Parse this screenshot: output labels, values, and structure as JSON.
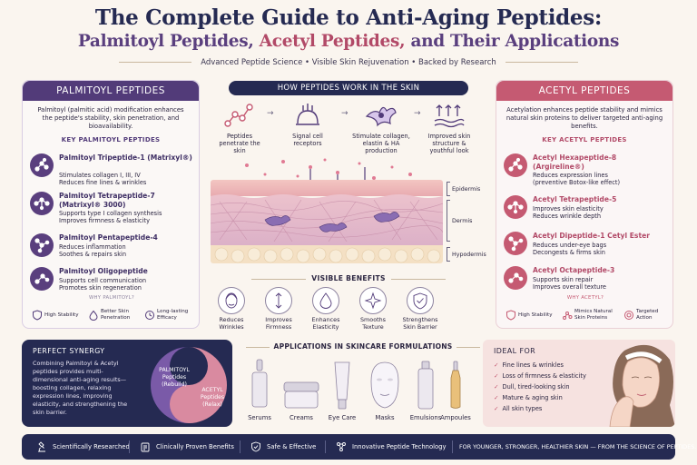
{
  "header": {
    "title": "The Complete Guide to Anti-Aging Peptides:",
    "subtitle_part1": "Palmitoyl Peptides,",
    "subtitle_part2": "Acetyl Peptides,",
    "subtitle_part3": "and Their Applications",
    "tagline": "Advanced Peptide Science • Visible Skin Rejuvenation • Backed by Research"
  },
  "palmitoyl": {
    "heading": "PALMITOYL PEPTIDES",
    "intro": "Palmitoyl (palmitic acid) modification enhances the peptide's stability, skin penetration, and bioavailability.",
    "key_title": "KEY PALMITOYL PEPTIDES",
    "items": [
      {
        "name": "Palmitoyl Tripeptide-1 (Matrixyl®)",
        "line1": "Stimulates collagen I, III, IV",
        "line2": "Reduces fine lines & wrinkles"
      },
      {
        "name": "Palmitoyl Tetrapeptide-7 (Matrixyl® 3000)",
        "line1": "Supports type I collagen synthesis",
        "line2": "Improves firmness & elasticity"
      },
      {
        "name": "Palmitoyl Pentapeptide-4",
        "line1": "Reduces inflammation",
        "line2": "Soothes & repairs skin"
      },
      {
        "name": "Palmitoyl Oligopeptide",
        "line1": "Supports cell communication",
        "line2": "Promotes skin regeneration"
      }
    ],
    "why_title": "WHY PALMITOYL?",
    "why": [
      "High Stability",
      "Better Skin Penetration",
      "Long-lasting Efficacy"
    ]
  },
  "acetyl": {
    "heading": "ACETYL PEPTIDES",
    "intro": "Acetylation enhances peptide stability and mimics natural skin proteins to deliver targeted anti-aging benefits.",
    "key_title": "KEY ACETYL PEPTIDES",
    "items": [
      {
        "name": "Acetyl Hexapeptide-8 (Argireline®)",
        "line1": "Reduces expression lines",
        "line2": "(preventive Botox-like effect)"
      },
      {
        "name": "Acetyl Tetrapeptide-5",
        "line1": "Improves skin elasticity",
        "line2": "Reduces wrinkle depth"
      },
      {
        "name": "Acetyl Dipeptide-1 Cetyl Ester",
        "line1": "Reduces under-eye bags",
        "line2": "Decongests & firms skin"
      },
      {
        "name": "Acetyl Octapeptide-3",
        "line1": "Supports skin repair",
        "line2": "Improves overall texture"
      }
    ],
    "why_title": "WHY ACETYL?",
    "why": [
      "High Stability",
      "Mimics Natural Skin Proteins",
      "Targeted Action"
    ]
  },
  "how": {
    "heading": "HOW PEPTIDES WORK IN THE SKIN",
    "steps": [
      "Peptides penetrate the skin",
      "Signal cell receptors",
      "Stimulate collagen, elastin & HA production",
      "Improved skin structure & youthful look"
    ],
    "layers": [
      "Epidermis",
      "Dermis",
      "Hypodermis"
    ]
  },
  "benefits": {
    "title": "VISIBLE BENEFITS",
    "items": [
      "Reduces Wrinkles",
      "Improves Firmness",
      "Enhances Elasticity",
      "Smooths Texture",
      "Strengthens Skin Barrier"
    ]
  },
  "synergy": {
    "title": "PERFECT SYNERGY",
    "text": "Combining Palmitoyl & Acetyl peptides provides multi-dimensional anti-aging results—boosting collagen, relaxing expression lines, improving elasticity, and strengthening the skin barrier.",
    "left_label": "PALMITOYL",
    "left_sub1": "Peptides",
    "left_sub2": "(Rebuild)",
    "right_label": "ACETYL",
    "right_sub1": "Peptides",
    "right_sub2": "(Relax)"
  },
  "applications": {
    "title": "APPLICATIONS IN SKINCARE FORMULATIONS",
    "items": [
      "Serums",
      "Creams",
      "Eye Care",
      "Masks",
      "Emulsions",
      "Ampoules"
    ]
  },
  "ideal": {
    "title": "IDEAL FOR",
    "items": [
      "Fine lines & wrinkles",
      "Loss of firmness & elasticity",
      "Dull, tired-looking skin",
      "Mature & aging skin",
      "All skin types"
    ]
  },
  "footer": {
    "items": [
      "Scientifically Researched",
      "Clinically Proven Benefits",
      "Safe & Effective",
      "Innovative Peptide Technology"
    ],
    "slogan": "FOR YOUNGER, STRONGER, HEALTHIER SKIN — FROM THE SCIENCE OF PEPTIDES."
  },
  "colors": {
    "navy": "#252a52",
    "purple": "#523b79",
    "rose": "#c55a72",
    "cream": "#faf5ef"
  }
}
